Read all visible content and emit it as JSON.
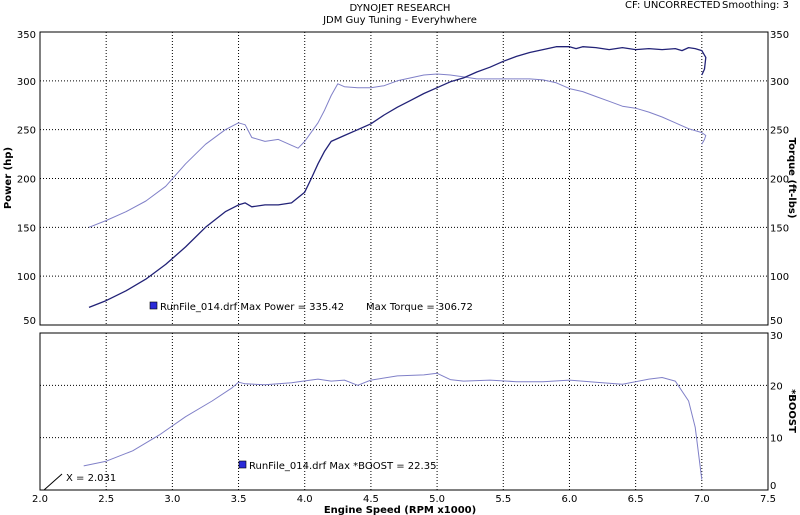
{
  "header": {
    "title": "DYNOJET RESEARCH",
    "subtitle": "JDM Guy Tuning - Everyhwhere",
    "correction": "CF: UNCORRECTED",
    "smoothing": "Smoothing: 3"
  },
  "colors": {
    "power": "#222277",
    "torque": "#8080c8",
    "boost": "#8080c8",
    "grid": "#000000",
    "legend_box": "#2a2ad8"
  },
  "chart_data": [
    {
      "type": "line",
      "xlabel": "Engine Speed (RPM x1000)",
      "ylabel": "Power (hp)",
      "ylabel_right": "Torque (ft-lbs)",
      "xlim": [
        2.0,
        7.5
      ],
      "ylim": [
        50,
        350
      ],
      "ylim_right": [
        50,
        350
      ],
      "xticks": [
        "2.0",
        "2.5",
        "3.0",
        "3.5",
        "4.0",
        "4.5",
        "5.0",
        "5.5",
        "6.0",
        "6.5",
        "7.0",
        "7.5"
      ],
      "yticks": [
        "350",
        "300",
        "250",
        "200",
        "150",
        "100",
        "50"
      ],
      "grid": true,
      "legend_text": "RunFile_014.drf Max Power = 335.42",
      "legend_text_2": "Max Torque = 306.72",
      "series": [
        {
          "name": "Power",
          "x": [
            2.37,
            2.5,
            2.65,
            2.8,
            2.95,
            3.1,
            3.25,
            3.4,
            3.5,
            3.55,
            3.6,
            3.7,
            3.8,
            3.9,
            4.0,
            4.05,
            4.1,
            4.15,
            4.2,
            4.3,
            4.4,
            4.5,
            4.6,
            4.7,
            4.8,
            4.9,
            5.0,
            5.1,
            5.2,
            5.3,
            5.4,
            5.5,
            5.6,
            5.7,
            5.8,
            5.9,
            6.0,
            6.05,
            6.1,
            6.2,
            6.3,
            6.4,
            6.5,
            6.6,
            6.7,
            6.8,
            6.85,
            6.9,
            6.95,
            7.0,
            7.03,
            7.02,
            7.0
          ],
          "y": [
            68,
            75,
            85,
            97,
            112,
            130,
            150,
            166,
            173,
            175,
            171,
            173,
            173,
            175,
            186,
            200,
            215,
            228,
            238,
            244,
            250,
            256,
            265,
            273,
            280,
            287,
            293,
            299,
            303,
            309,
            314,
            320,
            325,
            329,
            332,
            335,
            335,
            333,
            335,
            334,
            332,
            334,
            332,
            333,
            332,
            333,
            331,
            334,
            333,
            331,
            324,
            312,
            306
          ]
        },
        {
          "name": "Torque",
          "x": [
            2.37,
            2.5,
            2.65,
            2.8,
            2.95,
            3.1,
            3.25,
            3.4,
            3.5,
            3.55,
            3.6,
            3.7,
            3.8,
            3.9,
            3.95,
            4.0,
            4.1,
            4.15,
            4.2,
            4.25,
            4.3,
            4.4,
            4.5,
            4.6,
            4.7,
            4.8,
            4.9,
            5.0,
            5.1,
            5.2,
            5.3,
            5.4,
            5.5,
            5.6,
            5.7,
            5.8,
            5.9,
            6.0,
            6.1,
            6.2,
            6.3,
            6.4,
            6.5,
            6.6,
            6.7,
            6.8,
            6.9,
            7.0,
            7.03,
            7.02,
            7.0
          ],
          "y": [
            150,
            157,
            166,
            177,
            192,
            215,
            235,
            250,
            257,
            255,
            242,
            238,
            240,
            234,
            231,
            238,
            257,
            270,
            285,
            297,
            294,
            293,
            293,
            295,
            300,
            303,
            306,
            307,
            306,
            304,
            302,
            302,
            302,
            302,
            302,
            301,
            298,
            292,
            289,
            284,
            279,
            274,
            272,
            268,
            263,
            257,
            251,
            247,
            244,
            240,
            235
          ]
        }
      ]
    },
    {
      "type": "line",
      "xlabel": "Engine Speed (RPM x1000)",
      "ylabel_right": "*BOOST",
      "xlim": [
        2.0,
        7.5
      ],
      "ylim": [
        0,
        30
      ],
      "yticks": [
        "30",
        "20",
        "10",
        "0"
      ],
      "grid": true,
      "legend_text": "RunFile_014.drf Max *BOOST = 22.35",
      "cursor_label": "X = 2.031",
      "series": [
        {
          "name": "*BOOST",
          "x": [
            2.33,
            2.5,
            2.7,
            2.9,
            3.1,
            3.3,
            3.45,
            3.5,
            3.55,
            3.7,
            3.9,
            4.1,
            4.2,
            4.3,
            4.4,
            4.5,
            4.7,
            4.9,
            5.0,
            5.1,
            5.2,
            5.4,
            5.6,
            5.8,
            6.0,
            6.2,
            6.4,
            6.6,
            6.7,
            6.8,
            6.9,
            6.95,
            7.0
          ],
          "y": [
            4.6,
            5.5,
            7.5,
            10.5,
            14,
            17,
            19.5,
            20.6,
            20.3,
            20.1,
            20.5,
            21.2,
            20.8,
            21,
            20,
            21,
            21.8,
            22,
            22.3,
            21.1,
            20.8,
            21,
            20.7,
            20.7,
            21,
            20.6,
            20.2,
            21.2,
            21.5,
            20.8,
            17,
            12,
            2
          ]
        }
      ]
    }
  ]
}
